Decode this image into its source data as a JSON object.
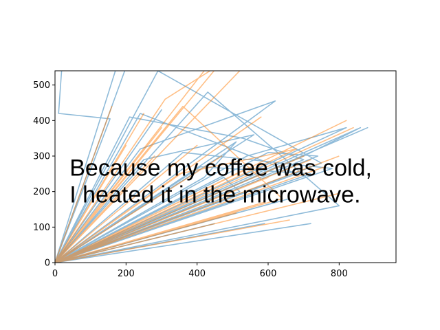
{
  "chart_data": {
    "type": "line",
    "xlim": [
      0,
      960
    ],
    "ylim": [
      0,
      540
    ],
    "xticks": [
      0,
      200,
      400,
      600,
      800
    ],
    "yticks": [
      0,
      100,
      200,
      300,
      400,
      500
    ],
    "grid": false,
    "series_colors": [
      "#1f77b4",
      "#ff7f0e"
    ],
    "series_alpha": 0.5,
    "annotation": {
      "lines": [
        "Because my coffee was cold,",
        "I heated it in the microwave."
      ],
      "x": 45,
      "y": 245
    },
    "series": [
      {
        "color": "#1f77b4",
        "x": [
          0,
          170,
          0,
          200,
          20,
          10,
          155,
          0,
          880,
          0,
          620,
          240,
          0,
          750,
          290,
          0,
          210,
          530,
          700,
          0,
          800,
          430,
          0,
          155,
          0,
          740,
          600,
          0,
          660,
          0,
          820,
          540,
          0,
          780,
          360,
          0,
          720,
          0,
          510,
          420,
          0,
          680,
          240,
          0,
          590,
          0,
          860,
          700,
          0,
          475,
          520,
          0,
          300,
          0,
          410,
          720,
          0,
          640,
          0,
          560,
          250,
          0,
          450
        ],
        "y": [
          0,
          540,
          0,
          550,
          560,
          420,
          405,
          0,
          380,
          0,
          455,
          320,
          0,
          280,
          540,
          0,
          410,
          350,
          290,
          0,
          160,
          480,
          0,
          100,
          0,
          300,
          310,
          0,
          180,
          0,
          380,
          300,
          0,
          265,
          310,
          0,
          110,
          0,
          340,
          240,
          0,
          250,
          420,
          0,
          110,
          0,
          380,
          300,
          0,
          240,
          200,
          0,
          430,
          0,
          270,
          250,
          0,
          175,
          0,
          360,
          290,
          0,
          110
        ]
      },
      {
        "color": "#ff7f0e",
        "x": [
          0,
          420,
          0,
          310,
          460,
          0,
          580,
          0,
          820,
          0,
          700,
          0,
          520,
          0,
          360,
          640,
          0,
          800,
          0,
          300,
          0,
          600,
          0,
          470,
          0,
          760,
          0,
          250,
          0,
          680,
          350,
          0,
          510,
          0,
          160,
          0,
          720,
          0,
          400,
          0,
          840,
          0,
          590,
          0,
          280,
          0,
          530,
          0,
          200,
          0,
          660,
          0,
          800
        ],
        "y": [
          0,
          540,
          0,
          460,
          555,
          0,
          410,
          0,
          400,
          0,
          300,
          0,
          540,
          0,
          440,
          180,
          0,
          195,
          0,
          380,
          0,
          240,
          0,
          300,
          0,
          270,
          0,
          420,
          0,
          320,
          250,
          0,
          140,
          0,
          440,
          0,
          290,
          0,
          330,
          0,
          380,
          0,
          170,
          0,
          300,
          0,
          260,
          0,
          330,
          0,
          120,
          0,
          300
        ]
      }
    ]
  }
}
